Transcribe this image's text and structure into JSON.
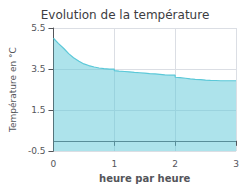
{
  "chart_data": {
    "type": "area",
    "title": "Evolution de la température",
    "xlabel": "heure par heure",
    "ylabel": "Température en °C",
    "x": [
      0,
      0.08,
      0.17,
      0.25,
      0.33,
      0.42,
      0.5,
      0.58,
      0.67,
      0.75,
      0.83,
      0.92,
      1.0,
      1.0,
      1.08,
      1.17,
      1.25,
      1.33,
      1.42,
      1.5,
      1.58,
      1.67,
      1.75,
      1.83,
      1.92,
      2.0,
      2.0,
      2.08,
      2.17,
      2.25,
      2.33,
      2.42,
      2.5,
      2.58,
      2.67,
      2.75,
      2.83,
      2.92,
      3.0
    ],
    "values": [
      5.0,
      4.75,
      4.5,
      4.25,
      4.05,
      3.88,
      3.75,
      3.67,
      3.6,
      3.55,
      3.52,
      3.5,
      3.5,
      3.42,
      3.4,
      3.38,
      3.36,
      3.34,
      3.32,
      3.3,
      3.28,
      3.26,
      3.24,
      3.22,
      3.2,
      3.2,
      3.1,
      3.08,
      3.05,
      3.02,
      3.0,
      2.98,
      2.96,
      2.95,
      2.94,
      2.93,
      2.93,
      2.93,
      2.93
    ],
    "color": "#5bc8d8",
    "xlim": [
      0,
      3
    ],
    "ylim": [
      -0.5,
      5.5
    ],
    "xticks": [
      0,
      1,
      2,
      3
    ],
    "yticks": [
      -0.5,
      1.5,
      3.5,
      5.5
    ],
    "grid": true
  }
}
